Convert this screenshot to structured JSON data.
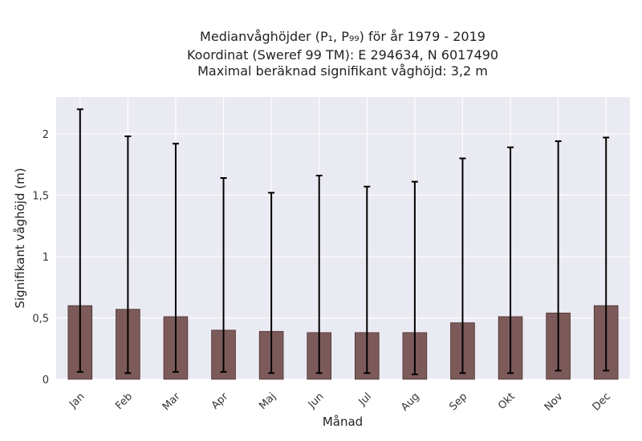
{
  "chart_data": {
    "type": "bar",
    "title_lines": [
      "Medianvåghöjder (P₁, P₉₉) för år 1979 - 2019",
      "Koordinat (Sweref 99 TM): E 294634, N 6017490",
      "Maximal beräknad signifikant våghöjd: 3,2 m"
    ],
    "xlabel": "Månad",
    "ylabel": "Signifikant våghöjd (m)",
    "categories": [
      "Jan",
      "Feb",
      "Mar",
      "Apr",
      "Maj",
      "Jun",
      "Jul",
      "Aug",
      "Sep",
      "Okt",
      "Nov",
      "Dec"
    ],
    "values": [
      0.6,
      0.57,
      0.51,
      0.4,
      0.39,
      0.38,
      0.38,
      0.38,
      0.46,
      0.51,
      0.54,
      0.6
    ],
    "p1": [
      0.06,
      0.05,
      0.06,
      0.06,
      0.05,
      0.05,
      0.05,
      0.04,
      0.05,
      0.05,
      0.07,
      0.07
    ],
    "p99": [
      2.2,
      1.98,
      1.92,
      1.64,
      1.52,
      1.66,
      1.57,
      1.61,
      1.8,
      1.89,
      1.94,
      1.97
    ],
    "ylim": [
      0,
      2.3
    ],
    "yticks": [
      0,
      0.5,
      1,
      1.5,
      2
    ],
    "ytick_labels": [
      "0",
      "0,5",
      "1",
      "1,5",
      "2"
    ],
    "grid": true,
    "colors": {
      "bar": "#7d5a5a",
      "bar_edge": "#4a3030",
      "plot_bg": "#eaeaf2",
      "grid": "#ffffff",
      "errorbar": "#000000"
    }
  }
}
